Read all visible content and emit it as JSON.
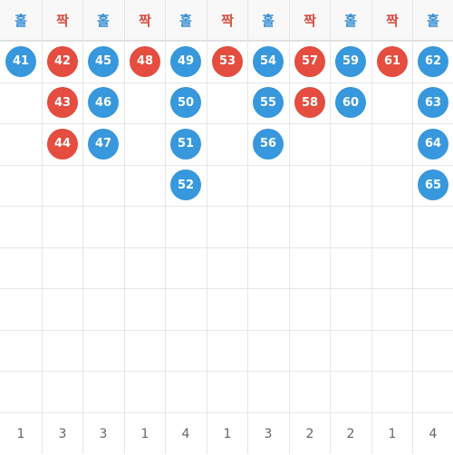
{
  "colors": {
    "odd": "#3798dd",
    "even": "#e44d3f"
  },
  "columns": [
    {
      "label": "홀",
      "type": "odd",
      "balls": [
        "41"
      ],
      "count": "1"
    },
    {
      "label": "짝",
      "type": "even",
      "balls": [
        "42",
        "43",
        "44"
      ],
      "count": "3"
    },
    {
      "label": "홀",
      "type": "odd",
      "balls": [
        "45",
        "46",
        "47"
      ],
      "count": "3"
    },
    {
      "label": "짝",
      "type": "even",
      "balls": [
        "48"
      ],
      "count": "1"
    },
    {
      "label": "홀",
      "type": "odd",
      "balls": [
        "49",
        "50",
        "51",
        "52"
      ],
      "count": "4"
    },
    {
      "label": "짝",
      "type": "even",
      "balls": [
        "53"
      ],
      "count": "1"
    },
    {
      "label": "홀",
      "type": "odd",
      "balls": [
        "54",
        "55",
        "56"
      ],
      "count": "3"
    },
    {
      "label": "짝",
      "type": "even",
      "balls": [
        "57",
        "58"
      ],
      "count": "2"
    },
    {
      "label": "홀",
      "type": "odd",
      "balls": [
        "59",
        "60"
      ],
      "count": "2"
    },
    {
      "label": "짝",
      "type": "even",
      "balls": [
        "61"
      ],
      "count": "1"
    },
    {
      "label": "홀",
      "type": "odd",
      "balls": [
        "62",
        "63",
        "64",
        "65"
      ],
      "count": "4"
    }
  ]
}
